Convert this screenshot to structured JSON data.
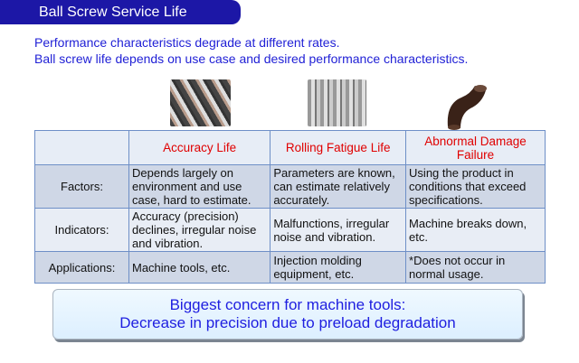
{
  "title": "Ball Screw Service Life",
  "intro": [
    "Performance characteristics degrade at different rates.",
    "Ball screw life depends on use case and desired performance characteristics."
  ],
  "table": {
    "headers": [
      "",
      "Accuracy Life",
      "Rolling Fatigue Life",
      "Abnormal Damage Failure"
    ],
    "rows": [
      {
        "label": "Factors:",
        "cells": [
          "Depends largely on environment and use case, hard to estimate.",
          "Parameters are known, can estimate relatively accurately.",
          "Using the product in conditions that exceed specifications."
        ]
      },
      {
        "label": "Indicators:",
        "cells": [
          "Accuracy (precision) declines, irregular noise and vibration.",
          "Malfunctions, irregular noise and vibration.",
          "Machine breaks down, etc."
        ]
      },
      {
        "label": "Applications:",
        "cells": [
          "Machine tools, etc.",
          "Injection molding equipment, etc.",
          "*Does not occur in normal usage."
        ]
      }
    ]
  },
  "callout": [
    "Biggest concern for machine tools:",
    "Decrease in precision due to preload degradation"
  ],
  "colors": {
    "title_bg": "#1c17a6",
    "intro_text": "#2121d6",
    "header_text": "#e00000"
  }
}
